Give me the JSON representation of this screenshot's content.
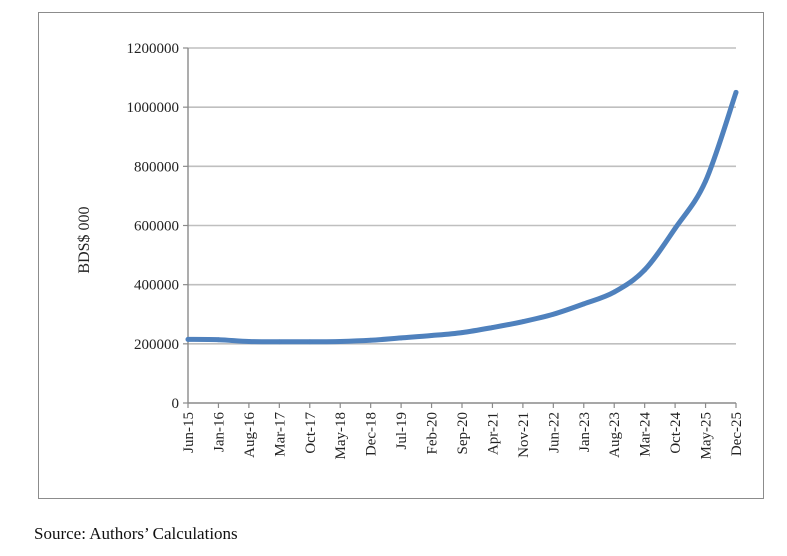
{
  "chart_data": {
    "type": "line",
    "title": "",
    "xlabel": "",
    "ylabel": "BDS$ 000",
    "ylim": [
      0,
      1200000
    ],
    "yticks": [
      0,
      200000,
      400000,
      600000,
      800000,
      1000000,
      1200000
    ],
    "ytick_labels": [
      "0",
      "200000",
      "400000",
      "600000",
      "800000",
      "1000000",
      "1200000"
    ],
    "grid": "horizontal",
    "line_color": "#4f81bd",
    "categories": [
      "Jun-15",
      "Jan-16",
      "Aug-16",
      "Mar-17",
      "Oct-17",
      "May-18",
      "Dec-18",
      "Jul-19",
      "Feb-20",
      "Sep-20",
      "Apr-21",
      "Nov-21",
      "Jun-22",
      "Jan-23",
      "Aug-23",
      "Mar-24",
      "Oct-24",
      "May-25",
      "Dec-25"
    ],
    "series": [
      {
        "values": [
          215000,
          214000,
          208000,
          207000,
          207000,
          208000,
          212000,
          220000,
          228000,
          238000,
          255000,
          275000,
          300000,
          335000,
          375000,
          450000,
          590000,
          750000,
          1050000
        ]
      }
    ]
  },
  "source": "Source: Authors’ Calculations"
}
